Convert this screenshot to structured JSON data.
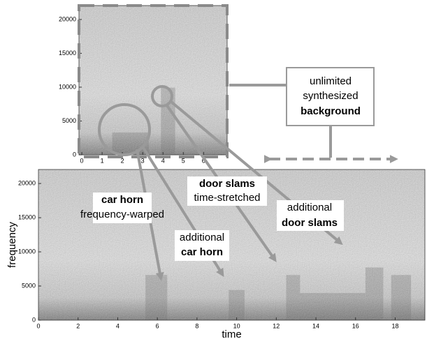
{
  "chart_data": [
    {
      "type": "spectrogram",
      "xlim": [
        -0.14,
        7.16
      ],
      "xticks": [
        0,
        1,
        2,
        3,
        4,
        5,
        6
      ],
      "ylim": [
        0,
        22050
      ],
      "yticks": [
        0,
        5000,
        10000,
        15000,
        20000
      ]
    },
    {
      "type": "spectrogram",
      "xlabel": "time",
      "ylabel": "frequency",
      "xlim": [
        0,
        19.5
      ],
      "xticks": [
        0,
        2,
        4,
        6,
        8,
        10,
        12,
        14,
        16,
        18
      ],
      "ylim": [
        0,
        22050
      ],
      "yticks": [
        0,
        5000,
        10000,
        15000,
        20000
      ],
      "annotations": [
        {
          "lines": [
            "car horn",
            "frequency-warped"
          ]
        },
        {
          "lines": [
            "additional",
            "car horn"
          ]
        },
        {
          "lines": [
            "door slams",
            "time-stretched"
          ]
        },
        {
          "lines": [
            "additional",
            "door slams"
          ]
        },
        {
          "lines": [
            "unlimited",
            "synthesized",
            "background"
          ]
        }
      ]
    }
  ]
}
